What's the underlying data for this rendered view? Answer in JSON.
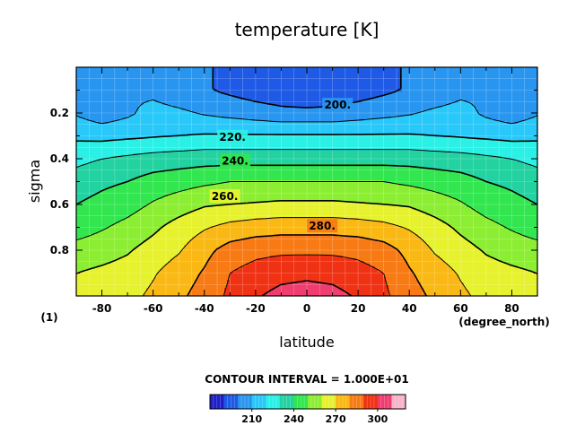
{
  "chart_data": {
    "type": "contour",
    "title": "temperature [K]",
    "xlabel": "latitude",
    "ylabel": "sigma",
    "x_unit_label": "(degree_north)",
    "y_corner_label": "(1)",
    "xlim": [
      -90,
      90
    ],
    "ylim": [
      1.0,
      0.0
    ],
    "xticks": [
      -80,
      -60,
      -40,
      -20,
      0,
      20,
      40,
      60,
      80
    ],
    "yticks": [
      0.2,
      0.4,
      0.6,
      0.8
    ],
    "ytick_labels": [
      "0.2",
      "0.4",
      "0.6",
      "0.8"
    ],
    "grid": true,
    "contour_interval_text": "CONTOUR INTERVAL = 1.000E+01",
    "contour_labels": [
      {
        "text": "200.",
        "lat": 12,
        "sigma": 0.165
      },
      {
        "text": "220.",
        "lat": -29,
        "sigma": 0.305
      },
      {
        "text": "240.",
        "lat": -28,
        "sigma": 0.41
      },
      {
        "text": "260.",
        "lat": -32,
        "sigma": 0.565
      },
      {
        "text": "280.",
        "lat": 6,
        "sigma": 0.695
      }
    ],
    "colorbar": {
      "levels": [
        190,
        200,
        210,
        220,
        230,
        240,
        250,
        260,
        270,
        280,
        290,
        300
      ],
      "tick_labels": [
        "210",
        "240",
        "270",
        "300"
      ],
      "colors": [
        "#1e1ec8",
        "#1e5ae6",
        "#2896f0",
        "#28c8fa",
        "#2af0e6",
        "#22d2a0",
        "#32e650",
        "#8cee32",
        "#e6f22e",
        "#fab814",
        "#f87a14",
        "#f03214",
        "#f03c6e",
        "#f8b4c8"
      ]
    },
    "temperature_grid": {
      "lat": [
        -90,
        -80,
        -70,
        -60,
        -50,
        -40,
        -30,
        -20,
        -10,
        0,
        10,
        20,
        30,
        40,
        50,
        60,
        70,
        80,
        90
      ],
      "sigma": [
        0.0,
        0.1,
        0.2,
        0.3,
        0.4,
        0.5,
        0.6,
        0.7,
        0.8,
        0.9,
        1.0
      ],
      "values": [
        [
          207,
          208,
          209,
          207,
          203,
          201,
          198,
          195,
          193,
          190,
          193,
          195,
          198,
          201,
          203,
          207,
          209,
          208,
          207
        ],
        [
          207,
          208,
          209,
          207,
          203,
          201,
          198,
          195,
          193,
          190,
          193,
          195,
          198,
          201,
          203,
          207,
          209,
          208,
          207
        ],
        [
          209,
          204,
          208,
          214,
          212,
          209,
          207,
          205,
          203,
          203,
          203,
          205,
          207,
          209,
          212,
          214,
          208,
          204,
          209
        ],
        [
          218,
          217,
          218,
          219,
          220,
          221,
          221,
          221,
          221,
          221,
          221,
          221,
          221,
          221,
          220,
          219,
          218,
          217,
          218
        ],
        [
          227,
          230,
          232,
          234,
          235,
          236,
          236,
          236,
          236,
          236,
          236,
          236,
          236,
          236,
          235,
          234,
          232,
          230,
          227
        ],
        [
          235,
          238,
          240,
          244,
          246,
          248,
          250,
          250,
          250,
          250,
          250,
          250,
          250,
          248,
          246,
          244,
          240,
          238,
          235
        ],
        [
          240,
          243,
          246,
          251,
          255,
          259,
          260,
          261,
          262,
          262,
          262,
          261,
          260,
          259,
          255,
          251,
          246,
          243,
          240
        ],
        [
          245,
          249,
          253,
          258,
          264,
          269,
          273,
          275,
          276,
          276,
          276,
          275,
          273,
          269,
          264,
          258,
          253,
          249,
          245
        ],
        [
          254,
          256,
          259,
          264,
          269,
          277,
          284,
          287,
          288,
          288,
          288,
          287,
          284,
          277,
          269,
          264,
          259,
          256,
          254
        ],
        [
          260,
          262,
          264,
          269,
          275,
          281,
          290,
          294,
          297,
          298,
          297,
          294,
          290,
          281,
          275,
          269,
          264,
          262,
          260
        ],
        [
          263,
          265,
          267,
          272,
          278,
          284,
          292,
          299,
          303,
          304,
          303,
          299,
          292,
          284,
          278,
          272,
          267,
          265,
          263
        ]
      ]
    }
  }
}
